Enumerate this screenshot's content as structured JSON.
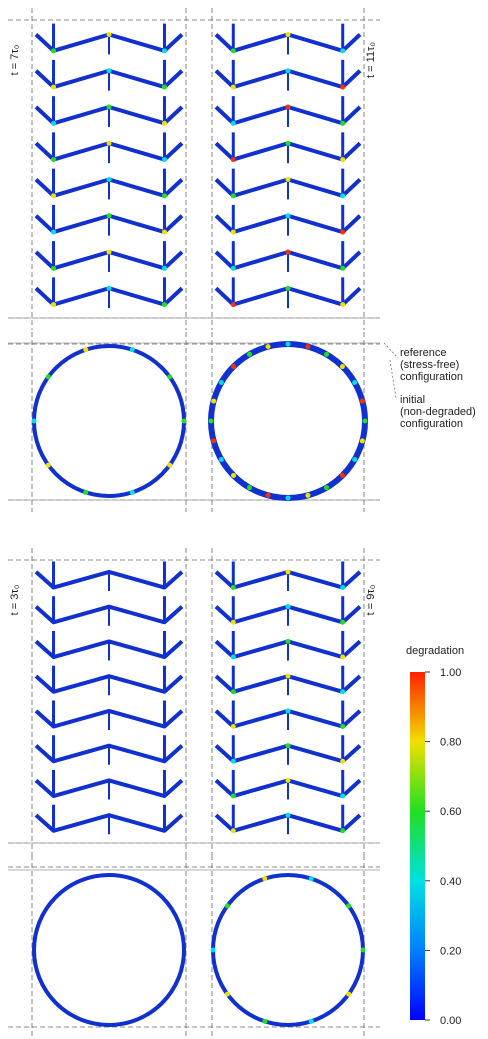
{
  "panels": [
    {
      "label": "t = 7τ₀"
    },
    {
      "label": "t = 11τ₀"
    },
    {
      "label": "t = 3τ₀"
    },
    {
      "label": "t = 9τ₀"
    }
  ],
  "annotations": [
    {
      "lines": [
        "reference",
        "(stress-free)",
        "configuration"
      ]
    },
    {
      "lines": [
        "initial",
        "(non-degraded)",
        "configuration"
      ]
    }
  ],
  "colorbar": {
    "title": "degradation",
    "ticks": [
      {
        "value": 1,
        "label": "1.00"
      },
      {
        "value": 0.8,
        "label": "0.80"
      },
      {
        "value": 0.6,
        "label": "0.60"
      },
      {
        "value": 0.4,
        "label": "0.40"
      },
      {
        "value": 0.2,
        "label": "0.20"
      },
      {
        "value": 0,
        "label": "0.00"
      }
    ],
    "range": [
      0,
      1
    ]
  }
}
